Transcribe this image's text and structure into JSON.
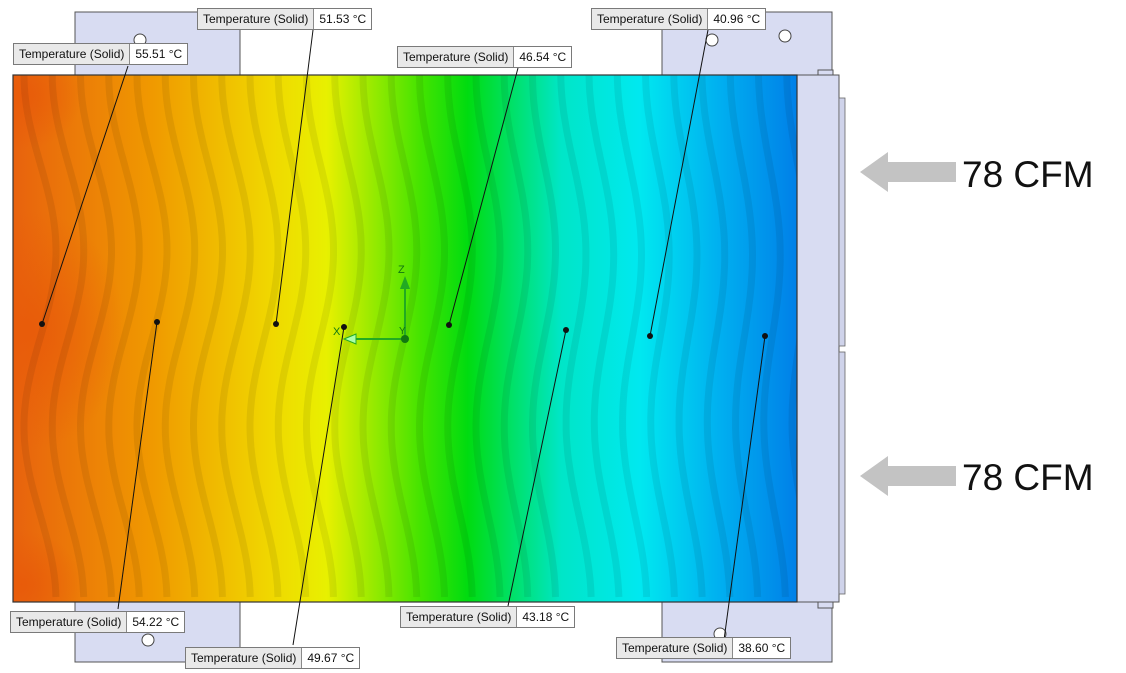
{
  "probes": [
    {
      "name": "Temperature (Solid)",
      "value": "55.51 °C"
    },
    {
      "name": "Temperature (Solid)",
      "value": "51.53 °C"
    },
    {
      "name": "Temperature (Solid)",
      "value": "46.54 °C"
    },
    {
      "name": "Temperature (Solid)",
      "value": "40.96 °C"
    },
    {
      "name": "Temperature (Solid)",
      "value": "54.22 °C"
    },
    {
      "name": "Temperature (Solid)",
      "value": "49.67 °C"
    },
    {
      "name": "Temperature (Solid)",
      "value": "43.18 °C"
    },
    {
      "name": "Temperature (Solid)",
      "value": "38.60 °C"
    }
  ],
  "airflow": [
    {
      "label": "78 CFM"
    },
    {
      "label": "78 CFM"
    }
  ],
  "triad": {
    "axis_z": "Z",
    "axis_x": "X",
    "axis_y": "Y"
  },
  "colors": {
    "hot": "#e8580a",
    "warm": "#f2a000",
    "mid": "#eaf000",
    "cool": "#00e000",
    "cold": "#00e8f0",
    "coldest": "#0080e8",
    "bracket": "#d8dcf2",
    "arrow": "#c3c3c3"
  }
}
